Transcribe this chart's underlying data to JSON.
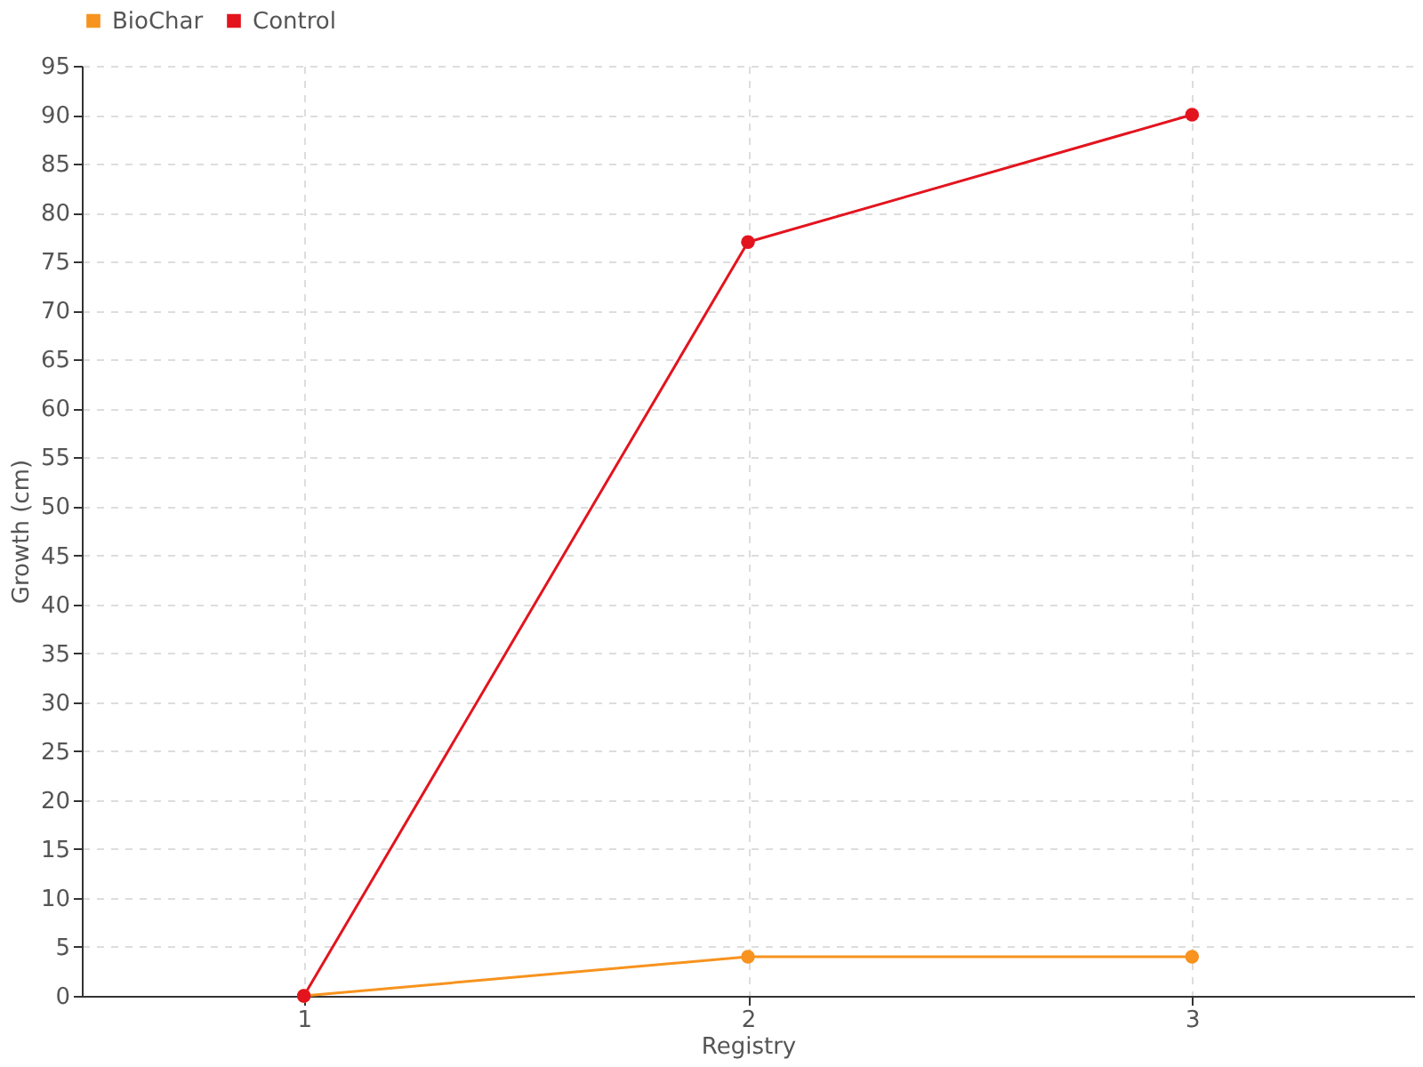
{
  "chart_data": {
    "type": "line",
    "xlabel": "Registry",
    "ylabel": "Growth (cm)",
    "categories": [
      "1",
      "2",
      "3"
    ],
    "series": [
      {
        "name": "BioChar",
        "color": "#f7931e",
        "values": [
          0,
          4,
          4
        ]
      },
      {
        "name": "Control",
        "color": "#e3141e",
        "values": [
          0,
          77,
          90
        ]
      }
    ],
    "ylim": [
      0,
      95
    ],
    "yticks": [
      0,
      5,
      10,
      15,
      20,
      25,
      30,
      35,
      40,
      45,
      50,
      55,
      60,
      65,
      70,
      75,
      80,
      85,
      90,
      95
    ],
    "grid": true,
    "legend": "top left",
    "marker": "circle",
    "line_style": "solid"
  }
}
